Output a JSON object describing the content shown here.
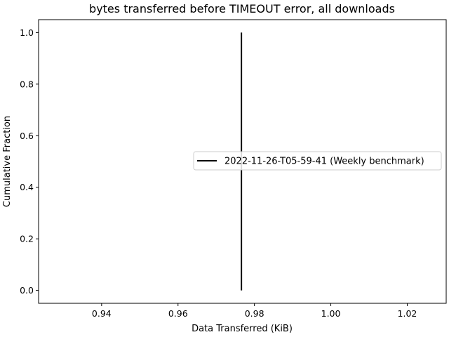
{
  "chart_data": {
    "type": "line",
    "title": "bytes transferred before TIMEOUT error, all downloads",
    "xlabel": "Data Transferred (KiB)",
    "ylabel": "Cumulative Fraction",
    "xlim": [
      0.9235,
      1.0302
    ],
    "ylim": [
      -0.05,
      1.05
    ],
    "x_ticks": [
      0.94,
      0.96,
      0.98,
      1.0,
      1.02
    ],
    "x_tick_labels": [
      "0.94",
      "0.96",
      "0.98",
      "1.00",
      "1.02"
    ],
    "y_ticks": [
      0.0,
      0.2,
      0.4,
      0.6,
      0.8,
      1.0
    ],
    "y_tick_labels": [
      "0.0",
      "0.2",
      "0.4",
      "0.6",
      "0.8",
      "1.0"
    ],
    "grid": false,
    "legend_position": "center-right",
    "series": [
      {
        "name": "2022-11-26-T05-59-41 (Weekly benchmark)",
        "color": "#000000",
        "x": [
          0.9766,
          0.9766
        ],
        "y": [
          0.0,
          1.0
        ]
      }
    ]
  }
}
